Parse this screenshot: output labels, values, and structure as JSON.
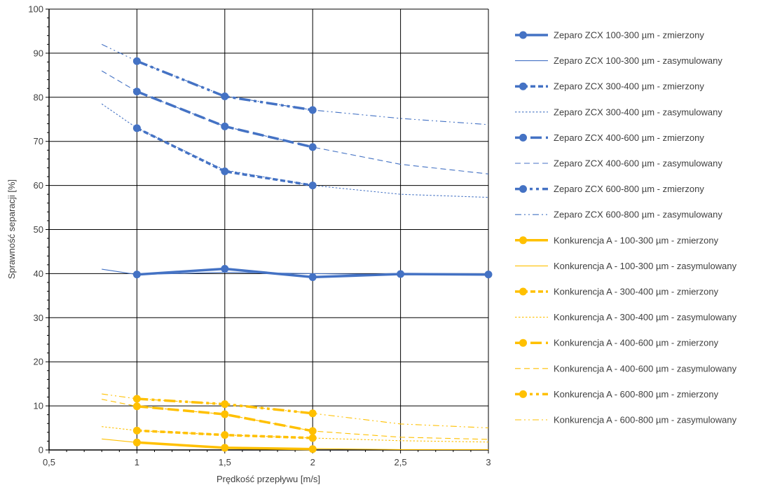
{
  "chart_data": {
    "type": "line",
    "title": "",
    "xlabel": "Prędkość przepływu [m/s]",
    "ylabel": "Sprawność separacji [%]",
    "xlim": [
      0.5,
      3
    ],
    "ylim": [
      0,
      100
    ],
    "x_ticks": [
      "0,5",
      "1",
      "1,5",
      "2",
      "2,5",
      "3"
    ],
    "y_ticks": [
      "0",
      "10",
      "20",
      "30",
      "40",
      "50",
      "60",
      "70",
      "80",
      "90",
      "100"
    ],
    "grid": true,
    "legend_position": "right",
    "colors": {
      "zeparo": "#4472c4",
      "konkurencja": "#ffc000"
    },
    "series": [
      {
        "name": "Zeparo ZCX 100-300 µm - zmierzony",
        "group": "zeparo",
        "style": "solid",
        "kind": "measured",
        "x": [
          1,
          1.5,
          2,
          2.5,
          3
        ],
        "y": [
          39.8,
          41.1,
          39.2,
          39.9,
          39.8
        ]
      },
      {
        "name": "Zeparo ZCX 100-300 µm - zasymulowany",
        "group": "zeparo",
        "style": "solid",
        "kind": "simulated",
        "x": [
          0.8,
          1,
          1.5,
          2,
          2.5,
          3
        ],
        "y": [
          41,
          39.8,
          40.3,
          40,
          39.8,
          39.7
        ]
      },
      {
        "name": "Zeparo ZCX 300-400 µm - zmierzony",
        "group": "zeparo",
        "style": "dot",
        "kind": "measured",
        "x": [
          1,
          1.5,
          2
        ],
        "y": [
          73,
          63.2,
          60
        ]
      },
      {
        "name": "Zeparo ZCX 300-400 µm - zasymulowany",
        "group": "zeparo",
        "style": "dot",
        "kind": "simulated",
        "x": [
          0.8,
          1,
          1.5,
          2,
          2.5,
          3
        ],
        "y": [
          78.5,
          73,
          63.5,
          60,
          58,
          57.3
        ]
      },
      {
        "name": "Zeparo ZCX 400-600 µm - zmierzony",
        "group": "zeparo",
        "style": "dash",
        "kind": "measured",
        "x": [
          1,
          1.5,
          2
        ],
        "y": [
          81.3,
          73.4,
          68.7
        ]
      },
      {
        "name": "Zeparo ZCX 400-600 µm - zasymulowany",
        "group": "zeparo",
        "style": "dash",
        "kind": "simulated",
        "x": [
          0.8,
          1,
          1.5,
          2,
          2.5,
          3
        ],
        "y": [
          86,
          81.3,
          73.4,
          68.7,
          64.8,
          62.6
        ]
      },
      {
        "name": "Zeparo ZCX 600-800 µm - zmierzony",
        "group": "zeparo",
        "style": "dashdotdot",
        "kind": "measured",
        "x": [
          1,
          1.5,
          2
        ],
        "y": [
          88.2,
          80.2,
          77.1
        ]
      },
      {
        "name": "Zeparo ZCX 600-800 µm - zasymulowany",
        "group": "zeparo",
        "style": "dashdotdot",
        "kind": "simulated",
        "x": [
          0.8,
          1,
          1.5,
          2,
          2.5,
          3
        ],
        "y": [
          92,
          88.2,
          80.3,
          77.1,
          75.2,
          73.8
        ]
      },
      {
        "name": "Konkurencja A - 100-300 µm - zmierzony",
        "group": "konkurencja",
        "style": "solid",
        "kind": "measured",
        "x": [
          1,
          1.5,
          2
        ],
        "y": [
          1.7,
          0.5,
          0.2
        ]
      },
      {
        "name": "Konkurencja A - 100-300 µm - zasymulowany",
        "group": "konkurencja",
        "style": "solid",
        "kind": "simulated",
        "x": [
          0.8,
          1,
          1.5,
          2,
          2.5,
          3
        ],
        "y": [
          2.5,
          1.7,
          0.6,
          0.3,
          0.1,
          0.1
        ]
      },
      {
        "name": "Konkurencja A - 300-400 µm - zmierzony",
        "group": "konkurencja",
        "style": "dot",
        "kind": "measured",
        "x": [
          1,
          1.5,
          2
        ],
        "y": [
          4.4,
          3.4,
          2.7
        ]
      },
      {
        "name": "Konkurencja A - 300-400 µm - zasymulowany",
        "group": "konkurencja",
        "style": "dot",
        "kind": "simulated",
        "x": [
          0.8,
          1,
          1.5,
          2,
          2.5,
          3
        ],
        "y": [
          5.3,
          4.4,
          3.4,
          2.7,
          2.1,
          1.8
        ]
      },
      {
        "name": "Konkurencja A - 400-600 µm - zmierzony",
        "group": "konkurencja",
        "style": "dash",
        "kind": "measured",
        "x": [
          1,
          1.5,
          2
        ],
        "y": [
          9.9,
          8.1,
          4.3
        ]
      },
      {
        "name": "Konkurencja A - 400-600 µm - zasymulowany",
        "group": "konkurencja",
        "style": "dash",
        "kind": "simulated",
        "x": [
          0.8,
          1,
          1.5,
          2,
          2.5,
          3
        ],
        "y": [
          11.5,
          9.9,
          8.1,
          4.3,
          2.9,
          2.4
        ]
      },
      {
        "name": "Konkurencja A - 600-800 µm - zmierzony",
        "group": "konkurencja",
        "style": "dashdotdot",
        "kind": "measured",
        "x": [
          1,
          1.5,
          2
        ],
        "y": [
          11.6,
          10.4,
          8.3
        ]
      },
      {
        "name": "Konkurencja A - 600-800 µm - zasymulowany",
        "group": "konkurencja",
        "style": "dashdotdot",
        "kind": "simulated",
        "x": [
          0.8,
          1,
          1.5,
          2,
          2.5,
          3
        ],
        "y": [
          12.7,
          11.6,
          10.4,
          8.3,
          5.9,
          5.0
        ]
      }
    ]
  }
}
